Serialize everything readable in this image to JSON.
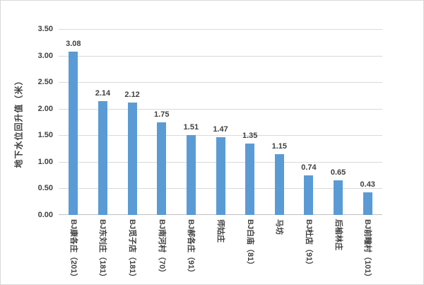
{
  "chart_data": {
    "type": "bar",
    "title": "",
    "xlabel": "",
    "ylabel": "地下水位回升值（米）",
    "categories": [
      "BJ康各庄（201）",
      "BJ东刘庄（181）",
      "BJ觅子店（181）",
      "BJ南河村（70）",
      "BJ郝各庄（91）",
      "师姑庄",
      "BJ白庙（81）",
      "马坊",
      "BJ杜店（91）",
      "后榆林庄",
      "BJ前疃村（101）"
    ],
    "values": [
      3.08,
      2.14,
      2.12,
      1.75,
      1.51,
      1.47,
      1.35,
      1.15,
      0.74,
      0.65,
      0.43
    ],
    "value_labels": [
      "3.08",
      "2.14",
      "2.12",
      "1.75",
      "1.51",
      "1.47",
      "1.35",
      "1.15",
      "0.74",
      "0.65",
      "0.43"
    ],
    "ylim": [
      0,
      3.5
    ],
    "ytick_step": 0.5,
    "yticks": [
      "0.00",
      "0.50",
      "1.00",
      "1.50",
      "2.00",
      "2.50",
      "3.00",
      "3.50"
    ],
    "grid": "horizontal",
    "legend": "none",
    "colors": {
      "bar": "#5b9bd5",
      "gridline": "#d9d9d9",
      "axis_line": "#bfbfbf",
      "text": "#404040",
      "background": "#ffffff",
      "border": "#d8d8d8"
    }
  }
}
